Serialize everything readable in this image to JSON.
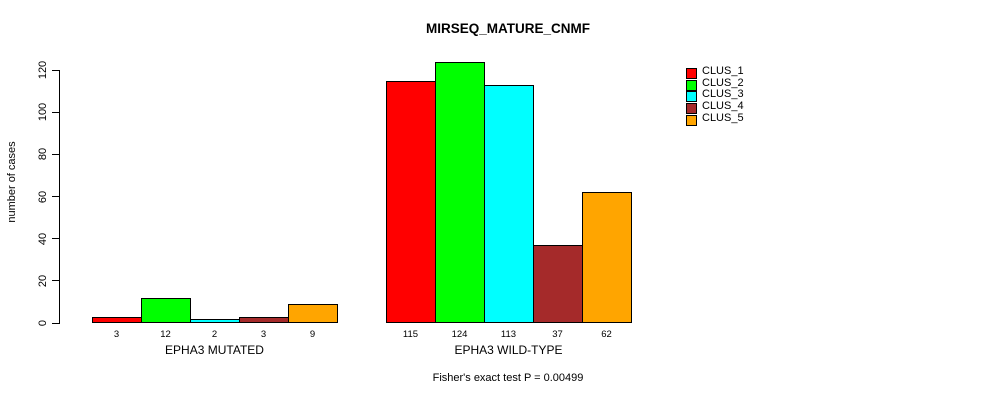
{
  "title": "MIRSEQ_MATURE_CNMF",
  "ylabel": "number of cases",
  "footnote": "Fisher's exact test P = 0.00499",
  "chart_data": {
    "type": "bar",
    "title": "MIRSEQ_MATURE_CNMF",
    "ylabel": "number of cases",
    "xlabel": "",
    "ylim": [
      0,
      120
    ],
    "yticks": [
      0,
      20,
      40,
      60,
      80,
      100,
      120
    ],
    "grid": false,
    "legend_position": "right",
    "annotation": "Fisher's exact test P = 0.00499",
    "categories": [
      "EPHA3 MUTATED",
      "EPHA3 WILD-TYPE"
    ],
    "series": [
      {
        "name": "CLUS_1",
        "color": "#FF0000",
        "values": [
          3,
          115
        ]
      },
      {
        "name": "CLUS_2",
        "color": "#00FF00",
        "values": [
          12,
          124
        ]
      },
      {
        "name": "CLUS_3",
        "color": "#00FFFF",
        "values": [
          2,
          113
        ]
      },
      {
        "name": "CLUS_4",
        "color": "#A52A2A",
        "values": [
          3,
          37
        ]
      },
      {
        "name": "CLUS_5",
        "color": "#FFA500",
        "values": [
          9,
          62
        ]
      }
    ],
    "bar_value_labels": {
      "EPHA3 MUTATED": [
        3,
        12,
        2,
        3,
        9
      ],
      "EPHA3 WILD-TYPE": [
        115,
        124,
        113,
        37,
        62
      ]
    }
  }
}
